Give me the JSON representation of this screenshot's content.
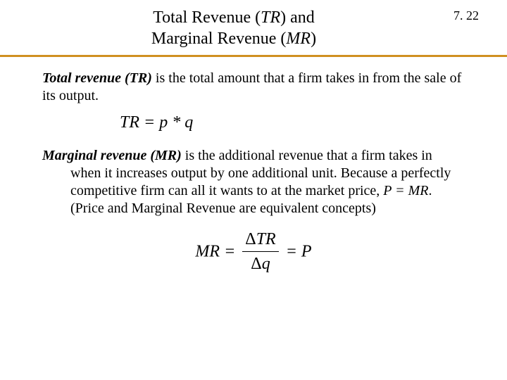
{
  "header": {
    "title_line1": "Total Revenue (",
    "title_abbr1": "TR",
    "title_line1_end": ") and",
    "title_line2": "Marginal Revenue (",
    "title_abbr2": "MR",
    "title_line2_end": ")",
    "page_number": "7. 22",
    "underline_color": "#d09020"
  },
  "body": {
    "tr_term": "Total revenue (TR)",
    "tr_def": " is the total amount that a firm takes in from the sale of its output.",
    "formula1": "TR = p * q",
    "mr_term": "Marginal revenue (MR)",
    "mr_def": " is the additional revenue that a firm takes in when it increases output by one additional unit.  Because a perfectly competitive firm can all it wants to at the market price, ",
    "mr_eq": "P = MR",
    "mr_def_end": ". (Price and Marginal Revenue are equivalent concepts)",
    "formula2": {
      "lhs": "MR",
      "eq": " = ",
      "num_delta": "Δ",
      "num_var": "TR",
      "den_delta": "Δ",
      "den_var": "q",
      "rhs": "P"
    }
  },
  "styling": {
    "background_color": "#ffffff",
    "text_color": "#000000",
    "title_fontsize": 24,
    "body_fontsize": 20,
    "formula_fontsize": 24,
    "font_family": "Times New Roman"
  }
}
